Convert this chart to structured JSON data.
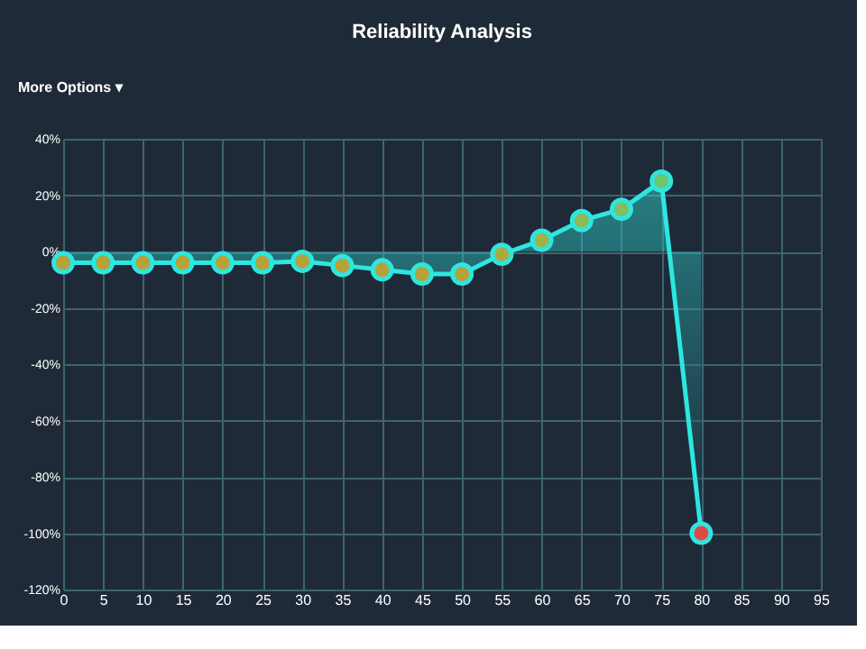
{
  "chart_data": {
    "type": "area",
    "title": "Reliability Analysis",
    "annotations": [
      "More Options ▾"
    ],
    "x": [
      0,
      5,
      10,
      15,
      20,
      25,
      30,
      35,
      40,
      45,
      50,
      55,
      60,
      65,
      70,
      75,
      80
    ],
    "series": [
      {
        "color": "#2ee6e0",
        "values": [
          -4,
          -4,
          -4,
          -4,
          -4,
          -4,
          -3.5,
          -5,
          -6.5,
          -8,
          -8,
          -1,
          4,
          11,
          15,
          25,
          -100
        ],
        "colors": [
          "#b5a23a",
          "#b5a23a",
          "#b5a23a",
          "#b5a23a",
          "#b5a23a",
          "#b5a23a",
          "#b5a23a",
          "#b5a23a",
          "#b5a23a",
          "#b5a23a",
          "#b5a23a",
          "#a8ab42",
          "#9fb24a",
          "#8cba55",
          "#80be5e",
          "#6ec66a",
          "#e04848"
        ]
      }
    ],
    "xlim": [
      0,
      95
    ],
    "xticks": [
      0,
      5,
      10,
      15,
      20,
      25,
      30,
      35,
      40,
      45,
      50,
      55,
      60,
      65,
      70,
      75,
      80,
      85,
      90,
      95
    ],
    "ylim": [
      -120,
      40
    ],
    "yticks": [
      {
        "value": -120,
        "label": "-120%"
      },
      {
        "value": -100,
        "label": "-100%"
      },
      {
        "value": -80,
        "label": "-80%"
      },
      {
        "value": -60,
        "label": "-60%"
      },
      {
        "value": -40,
        "label": "-40%"
      },
      {
        "value": -20,
        "label": "-20%"
      },
      {
        "value": 0,
        "label": "0%"
      },
      {
        "value": 20,
        "label": "20%"
      },
      {
        "value": 40,
        "label": "40%"
      }
    ],
    "grid": true,
    "marker": "circle",
    "line_style": "solid"
  }
}
